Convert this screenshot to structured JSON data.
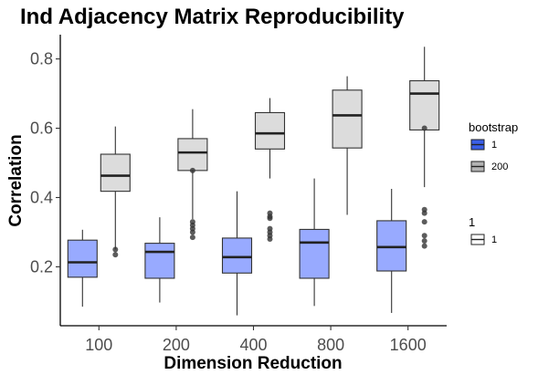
{
  "chart_data": {
    "type": "boxplot",
    "title": "Ind Adjacency Matrix Reproducibility",
    "xlabel": "Dimension Reduction",
    "ylabel": "Correlation",
    "ylim": [
      0.03,
      0.87
    ],
    "yticks": [
      {
        "value": 0.2,
        "label": "0.2"
      },
      {
        "value": 0.4,
        "label": "0.4"
      },
      {
        "value": 0.6,
        "label": "0.6"
      },
      {
        "value": 0.8,
        "label": "0.8"
      }
    ],
    "categories": [
      "100",
      "200",
      "400",
      "800",
      "1600"
    ],
    "grid": false,
    "legend_position": "right",
    "legends": [
      {
        "title": "bootstrap",
        "entries": [
          {
            "label": "1",
            "color": "#3a5fe8"
          },
          {
            "label": "200",
            "color": "#b3b3b3"
          }
        ]
      },
      {
        "title": "1",
        "entries": [
          {
            "label": "1",
            "color": "#ffffff"
          }
        ]
      }
    ],
    "series": [
      {
        "name": "1",
        "fill": "#98aaff",
        "boxes": [
          {
            "category": "100",
            "whisker_low": 0.085,
            "q1": 0.17,
            "median": 0.213,
            "q3": 0.277,
            "whisker_high": 0.307,
            "outliers": []
          },
          {
            "category": "200",
            "whisker_low": 0.097,
            "q1": 0.167,
            "median": 0.243,
            "q3": 0.268,
            "whisker_high": 0.343,
            "outliers": []
          },
          {
            "category": "400",
            "whisker_low": 0.06,
            "q1": 0.182,
            "median": 0.228,
            "q3": 0.283,
            "whisker_high": 0.418,
            "outliers": []
          },
          {
            "category": "800",
            "whisker_low": 0.087,
            "q1": 0.167,
            "median": 0.27,
            "q3": 0.308,
            "whisker_high": 0.455,
            "outliers": []
          },
          {
            "category": "1600",
            "whisker_low": 0.067,
            "q1": 0.188,
            "median": 0.257,
            "q3": 0.333,
            "whisker_high": 0.425,
            "outliers": []
          }
        ]
      },
      {
        "name": "200",
        "fill": "#dcdcdc",
        "boxes": [
          {
            "category": "100",
            "whisker_low": 0.25,
            "q1": 0.418,
            "median": 0.463,
            "q3": 0.525,
            "whisker_high": 0.605,
            "outliers": [
              0.235,
              0.25
            ]
          },
          {
            "category": "200",
            "whisker_low": 0.338,
            "q1": 0.478,
            "median": 0.53,
            "q3": 0.57,
            "whisker_high": 0.655,
            "outliers": [
              0.478,
              0.33,
              0.32,
              0.31,
              0.3,
              0.285
            ]
          },
          {
            "category": "400",
            "whisker_low": 0.455,
            "q1": 0.54,
            "median": 0.585,
            "q3": 0.645,
            "whisker_high": 0.687,
            "outliers": [
              0.355,
              0.345,
              0.34,
              0.31,
              0.3,
              0.29,
              0.28
            ]
          },
          {
            "category": "800",
            "whisker_low": 0.35,
            "q1": 0.543,
            "median": 0.637,
            "q3": 0.71,
            "whisker_high": 0.75,
            "outliers": []
          },
          {
            "category": "1600",
            "whisker_low": 0.43,
            "q1": 0.595,
            "median": 0.7,
            "q3": 0.737,
            "whisker_high": 0.835,
            "outliers": [
              0.6,
              0.365,
              0.355,
              0.33,
              0.29,
              0.275,
              0.26
            ]
          }
        ]
      }
    ]
  }
}
